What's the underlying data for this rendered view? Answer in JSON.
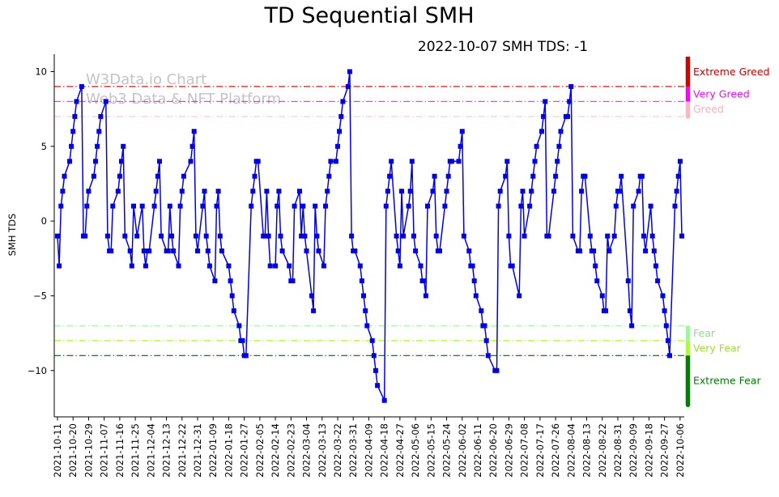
{
  "title": "TD Sequential SMH",
  "subtitle": "2022-10-07 SMH TDS: -1",
  "watermark": {
    "line1": "W3Data.io Chart",
    "line2": "Web3 Data & NFT Platform"
  },
  "chart_data": {
    "type": "line",
    "title": "TD Sequential SMH",
    "subtitle": "2022-10-07 SMH TDS: -1",
    "xlabel": "",
    "ylabel": "SMH TDS",
    "ylim": [
      -13.1,
      11.0
    ],
    "grid": false,
    "line_color": "#0000ee",
    "marker": "square",
    "yticks": [
      {
        "value": 10,
        "label": "10"
      },
      {
        "value": 5,
        "label": "5"
      },
      {
        "value": 0,
        "label": "0"
      },
      {
        "value": -5,
        "label": "−5"
      },
      {
        "value": -10,
        "label": "−10"
      }
    ],
    "x_ticks": [
      "2021-10-11",
      "2021-10-20",
      "2021-10-29",
      "2021-11-07",
      "2021-11-16",
      "2021-11-25",
      "2021-12-04",
      "2021-12-13",
      "2021-12-22",
      "2021-12-31",
      "2022-01-09",
      "2022-01-18",
      "2022-01-27",
      "2022-02-05",
      "2022-02-14",
      "2022-02-23",
      "2022-03-04",
      "2022-03-13",
      "2022-03-22",
      "2022-03-31",
      "2022-04-09",
      "2022-04-18",
      "2022-04-27",
      "2022-05-06",
      "2022-05-15",
      "2022-05-24",
      "2022-06-02",
      "2022-06-11",
      "2022-06-20",
      "2022-06-29",
      "2022-07-08",
      "2022-07-17",
      "2022-07-26",
      "2022-08-04",
      "2022-08-13",
      "2022-08-22",
      "2022-08-31",
      "2022-09-09",
      "2022-09-18",
      "2022-09-27",
      "2022-10-06"
    ],
    "zones": [
      {
        "label": "Extreme Greed",
        "line_value": 9,
        "color": "#d40000",
        "label_color": "#cc0000",
        "line_opacity": 0.9,
        "bar": [
          11.0,
          9
        ],
        "rounded": false
      },
      {
        "label": "Very Greed",
        "line_value": 8,
        "color": "#ff00ff",
        "label_color": "#ff00ff",
        "line_opacity": 0.8,
        "bar": [
          9,
          8
        ],
        "rounded": false
      },
      {
        "label": "Greed",
        "line_value": 7,
        "color": "#ffb6c1",
        "label_color": "#ffb0bb",
        "line_opacity": 0.7,
        "bar": [
          8,
          7
        ],
        "rounded": true
      },
      {
        "label": "Fear",
        "line_value": -7,
        "color": "#98fb98",
        "label_color": "#8fdc8f",
        "line_opacity": 0.8,
        "bar": [
          -7,
          -8
        ],
        "rounded": false
      },
      {
        "label": "Very Fear",
        "line_value": -8,
        "color": "#adff2f",
        "label_color": "#9fe31b",
        "line_opacity": 0.95,
        "bar": [
          -8,
          -9
        ],
        "rounded": false
      },
      {
        "label": "Extreme Fear",
        "line_value": -9,
        "color": "#008000",
        "label_color": "#008000",
        "line_opacity": 0.9,
        "bar": [
          -9,
          -12.3
        ],
        "rounded": true
      }
    ],
    "points": [
      [
        "2021-10-11",
        -1
      ],
      [
        "2021-10-12",
        -3
      ],
      [
        "2021-10-13",
        1
      ],
      [
        "2021-10-14",
        2
      ],
      [
        "2021-10-15",
        3
      ],
      [
        "2021-10-18",
        4
      ],
      [
        "2021-10-19",
        5
      ],
      [
        "2021-10-20",
        6
      ],
      [
        "2021-10-21",
        7
      ],
      [
        "2021-10-22",
        8
      ],
      [
        "2021-10-25",
        9
      ],
      [
        "2021-10-26",
        -1
      ],
      [
        "2021-10-27",
        -1
      ],
      [
        "2021-10-28",
        1
      ],
      [
        "2021-10-29",
        2
      ],
      [
        "2021-11-01",
        3
      ],
      [
        "2021-11-02",
        4
      ],
      [
        "2021-11-03",
        5
      ],
      [
        "2021-11-04",
        6
      ],
      [
        "2021-11-05",
        7
      ],
      [
        "2021-11-08",
        8
      ],
      [
        "2021-11-09",
        -1
      ],
      [
        "2021-11-10",
        -2
      ],
      [
        "2021-11-11",
        -2
      ],
      [
        "2021-11-12",
        1
      ],
      [
        "2021-11-15",
        2
      ],
      [
        "2021-11-16",
        3
      ],
      [
        "2021-11-17",
        4
      ],
      [
        "2021-11-18",
        5
      ],
      [
        "2021-11-19",
        -1
      ],
      [
        "2021-11-22",
        -2
      ],
      [
        "2021-11-23",
        -3
      ],
      [
        "2021-11-24",
        1
      ],
      [
        "2021-11-26",
        -1
      ],
      [
        "2021-11-29",
        1
      ],
      [
        "2021-11-30",
        -2
      ],
      [
        "2021-12-01",
        -3
      ],
      [
        "2021-12-02",
        -2
      ],
      [
        "2021-12-03",
        -2
      ],
      [
        "2021-12-06",
        1
      ],
      [
        "2021-12-07",
        2
      ],
      [
        "2021-12-08",
        3
      ],
      [
        "2021-12-09",
        4
      ],
      [
        "2021-12-10",
        -1
      ],
      [
        "2021-12-13",
        -2
      ],
      [
        "2021-12-14",
        -2
      ],
      [
        "2021-12-15",
        1
      ],
      [
        "2021-12-16",
        -1
      ],
      [
        "2021-12-17",
        -2
      ],
      [
        "2021-12-20",
        -3
      ],
      [
        "2021-12-21",
        1
      ],
      [
        "2021-12-22",
        2
      ],
      [
        "2021-12-23",
        3
      ],
      [
        "2021-12-27",
        4
      ],
      [
        "2021-12-28",
        5
      ],
      [
        "2021-12-29",
        6
      ],
      [
        "2021-12-30",
        -1
      ],
      [
        "2021-12-31",
        -2
      ],
      [
        "2022-01-03",
        1
      ],
      [
        "2022-01-04",
        2
      ],
      [
        "2022-01-05",
        -1
      ],
      [
        "2022-01-06",
        -2
      ],
      [
        "2022-01-07",
        -3
      ],
      [
        "2022-01-10",
        -4
      ],
      [
        "2022-01-11",
        1
      ],
      [
        "2022-01-12",
        2
      ],
      [
        "2022-01-13",
        -1
      ],
      [
        "2022-01-14",
        -2
      ],
      [
        "2022-01-18",
        -3
      ],
      [
        "2022-01-19",
        -4
      ],
      [
        "2022-01-20",
        -5
      ],
      [
        "2022-01-21",
        -6
      ],
      [
        "2022-01-24",
        -7
      ],
      [
        "2022-01-25",
        -8
      ],
      [
        "2022-01-26",
        -8
      ],
      [
        "2022-01-27",
        -9
      ],
      [
        "2022-01-28",
        -9
      ],
      [
        "2022-01-31",
        1
      ],
      [
        "2022-02-01",
        2
      ],
      [
        "2022-02-02",
        3
      ],
      [
        "2022-02-03",
        4
      ],
      [
        "2022-02-04",
        4
      ],
      [
        "2022-02-07",
        -1
      ],
      [
        "2022-02-08",
        -1
      ],
      [
        "2022-02-09",
        2
      ],
      [
        "2022-02-10",
        -1
      ],
      [
        "2022-02-11",
        -3
      ],
      [
        "2022-02-14",
        -3
      ],
      [
        "2022-02-15",
        1
      ],
      [
        "2022-02-16",
        2
      ],
      [
        "2022-02-17",
        -1
      ],
      [
        "2022-02-18",
        -2
      ],
      [
        "2022-02-22",
        -3
      ],
      [
        "2022-02-23",
        -4
      ],
      [
        "2022-02-24",
        -4
      ],
      [
        "2022-02-25",
        1
      ],
      [
        "2022-02-28",
        2
      ],
      [
        "2022-03-01",
        -1
      ],
      [
        "2022-03-02",
        1
      ],
      [
        "2022-03-03",
        -1
      ],
      [
        "2022-03-04",
        -2
      ],
      [
        "2022-03-07",
        -5
      ],
      [
        "2022-03-08",
        -6
      ],
      [
        "2022-03-09",
        1
      ],
      [
        "2022-03-10",
        -1
      ],
      [
        "2022-03-11",
        -2
      ],
      [
        "2022-03-14",
        -3
      ],
      [
        "2022-03-15",
        1
      ],
      [
        "2022-03-16",
        2
      ],
      [
        "2022-03-17",
        3
      ],
      [
        "2022-03-18",
        4
      ],
      [
        "2022-03-21",
        4
      ],
      [
        "2022-03-22",
        5
      ],
      [
        "2022-03-23",
        6
      ],
      [
        "2022-03-24",
        7
      ],
      [
        "2022-03-25",
        8
      ],
      [
        "2022-03-28",
        9
      ],
      [
        "2022-03-29",
        10
      ],
      [
        "2022-03-30",
        -1
      ],
      [
        "2022-03-31",
        -2
      ],
      [
        "2022-04-01",
        -2
      ],
      [
        "2022-04-04",
        -3
      ],
      [
        "2022-04-05",
        -4
      ],
      [
        "2022-04-06",
        -5
      ],
      [
        "2022-04-07",
        -6
      ],
      [
        "2022-04-08",
        -7
      ],
      [
        "2022-04-11",
        -8
      ],
      [
        "2022-04-12",
        -9
      ],
      [
        "2022-04-13",
        -10
      ],
      [
        "2022-04-14",
        -11
      ],
      [
        "2022-04-18",
        -12
      ],
      [
        "2022-04-19",
        1
      ],
      [
        "2022-04-20",
        2
      ],
      [
        "2022-04-21",
        3
      ],
      [
        "2022-04-22",
        4
      ],
      [
        "2022-04-25",
        -1
      ],
      [
        "2022-04-26",
        -2
      ],
      [
        "2022-04-27",
        -3
      ],
      [
        "2022-04-28",
        2
      ],
      [
        "2022-04-29",
        -1
      ],
      [
        "2022-05-02",
        1
      ],
      [
        "2022-05-03",
        2
      ],
      [
        "2022-05-04",
        4
      ],
      [
        "2022-05-05",
        -1
      ],
      [
        "2022-05-06",
        -2
      ],
      [
        "2022-05-09",
        -3
      ],
      [
        "2022-05-10",
        -4
      ],
      [
        "2022-05-11",
        -4
      ],
      [
        "2022-05-12",
        -5
      ],
      [
        "2022-05-13",
        1
      ],
      [
        "2022-05-16",
        2
      ],
      [
        "2022-05-17",
        3
      ],
      [
        "2022-05-18",
        -1
      ],
      [
        "2022-05-19",
        -2
      ],
      [
        "2022-05-20",
        -2
      ],
      [
        "2022-05-23",
        1
      ],
      [
        "2022-05-24",
        2
      ],
      [
        "2022-05-25",
        3
      ],
      [
        "2022-05-26",
        4
      ],
      [
        "2022-05-27",
        4
      ],
      [
        "2022-05-31",
        4
      ],
      [
        "2022-06-01",
        5
      ],
      [
        "2022-06-02",
        6
      ],
      [
        "2022-06-03",
        -1
      ],
      [
        "2022-06-06",
        -2
      ],
      [
        "2022-06-07",
        -3
      ],
      [
        "2022-06-08",
        -3
      ],
      [
        "2022-06-09",
        -4
      ],
      [
        "2022-06-10",
        -5
      ],
      [
        "2022-06-13",
        -6
      ],
      [
        "2022-06-14",
        -7
      ],
      [
        "2022-06-15",
        -7
      ],
      [
        "2022-06-16",
        -8
      ],
      [
        "2022-06-17",
        -9
      ],
      [
        "2022-06-21",
        -10
      ],
      [
        "2022-06-22",
        -10
      ],
      [
        "2022-06-23",
        1
      ],
      [
        "2022-06-24",
        2
      ],
      [
        "2022-06-27",
        3
      ],
      [
        "2022-06-28",
        4
      ],
      [
        "2022-06-29",
        -1
      ],
      [
        "2022-06-30",
        -3
      ],
      [
        "2022-07-01",
        -3
      ],
      [
        "2022-07-05",
        -5
      ],
      [
        "2022-07-06",
        1
      ],
      [
        "2022-07-07",
        2
      ],
      [
        "2022-07-08",
        -1
      ],
      [
        "2022-07-11",
        1
      ],
      [
        "2022-07-12",
        2
      ],
      [
        "2022-07-13",
        3
      ],
      [
        "2022-07-14",
        4
      ],
      [
        "2022-07-15",
        5
      ],
      [
        "2022-07-18",
        6
      ],
      [
        "2022-07-19",
        7
      ],
      [
        "2022-07-20",
        8
      ],
      [
        "2022-07-21",
        -1
      ],
      [
        "2022-07-22",
        -1
      ],
      [
        "2022-07-25",
        2
      ],
      [
        "2022-07-26",
        3
      ],
      [
        "2022-07-27",
        4
      ],
      [
        "2022-07-28",
        5
      ],
      [
        "2022-07-29",
        6
      ],
      [
        "2022-08-01",
        7
      ],
      [
        "2022-08-02",
        7
      ],
      [
        "2022-08-03",
        8
      ],
      [
        "2022-08-04",
        9
      ],
      [
        "2022-08-05",
        -1
      ],
      [
        "2022-08-08",
        -2
      ],
      [
        "2022-08-09",
        -2
      ],
      [
        "2022-08-10",
        2
      ],
      [
        "2022-08-11",
        3
      ],
      [
        "2022-08-12",
        3
      ],
      [
        "2022-08-15",
        -1
      ],
      [
        "2022-08-16",
        -2
      ],
      [
        "2022-08-17",
        -2
      ],
      [
        "2022-08-18",
        -3
      ],
      [
        "2022-08-19",
        -4
      ],
      [
        "2022-08-22",
        -5
      ],
      [
        "2022-08-23",
        -6
      ],
      [
        "2022-08-24",
        -6
      ],
      [
        "2022-08-25",
        -1
      ],
      [
        "2022-08-26",
        -2
      ],
      [
        "2022-08-29",
        -1
      ],
      [
        "2022-08-30",
        1
      ],
      [
        "2022-08-31",
        2
      ],
      [
        "2022-09-01",
        2
      ],
      [
        "2022-09-02",
        3
      ],
      [
        "2022-09-06",
        -4
      ],
      [
        "2022-09-07",
        -6
      ],
      [
        "2022-09-08",
        -7
      ],
      [
        "2022-09-09",
        1
      ],
      [
        "2022-09-12",
        2
      ],
      [
        "2022-09-13",
        3
      ],
      [
        "2022-09-14",
        3
      ],
      [
        "2022-09-15",
        -1
      ],
      [
        "2022-09-16",
        -2
      ],
      [
        "2022-09-19",
        1
      ],
      [
        "2022-09-20",
        -1
      ],
      [
        "2022-09-21",
        -2
      ],
      [
        "2022-09-22",
        -3
      ],
      [
        "2022-09-23",
        -4
      ],
      [
        "2022-09-26",
        -5
      ],
      [
        "2022-09-27",
        -6
      ],
      [
        "2022-09-28",
        -7
      ],
      [
        "2022-09-29",
        -8
      ],
      [
        "2022-09-30",
        -9
      ],
      [
        "2022-10-03",
        1
      ],
      [
        "2022-10-04",
        2
      ],
      [
        "2022-10-05",
        3
      ],
      [
        "2022-10-06",
        4
      ],
      [
        "2022-10-07",
        -1
      ]
    ]
  }
}
